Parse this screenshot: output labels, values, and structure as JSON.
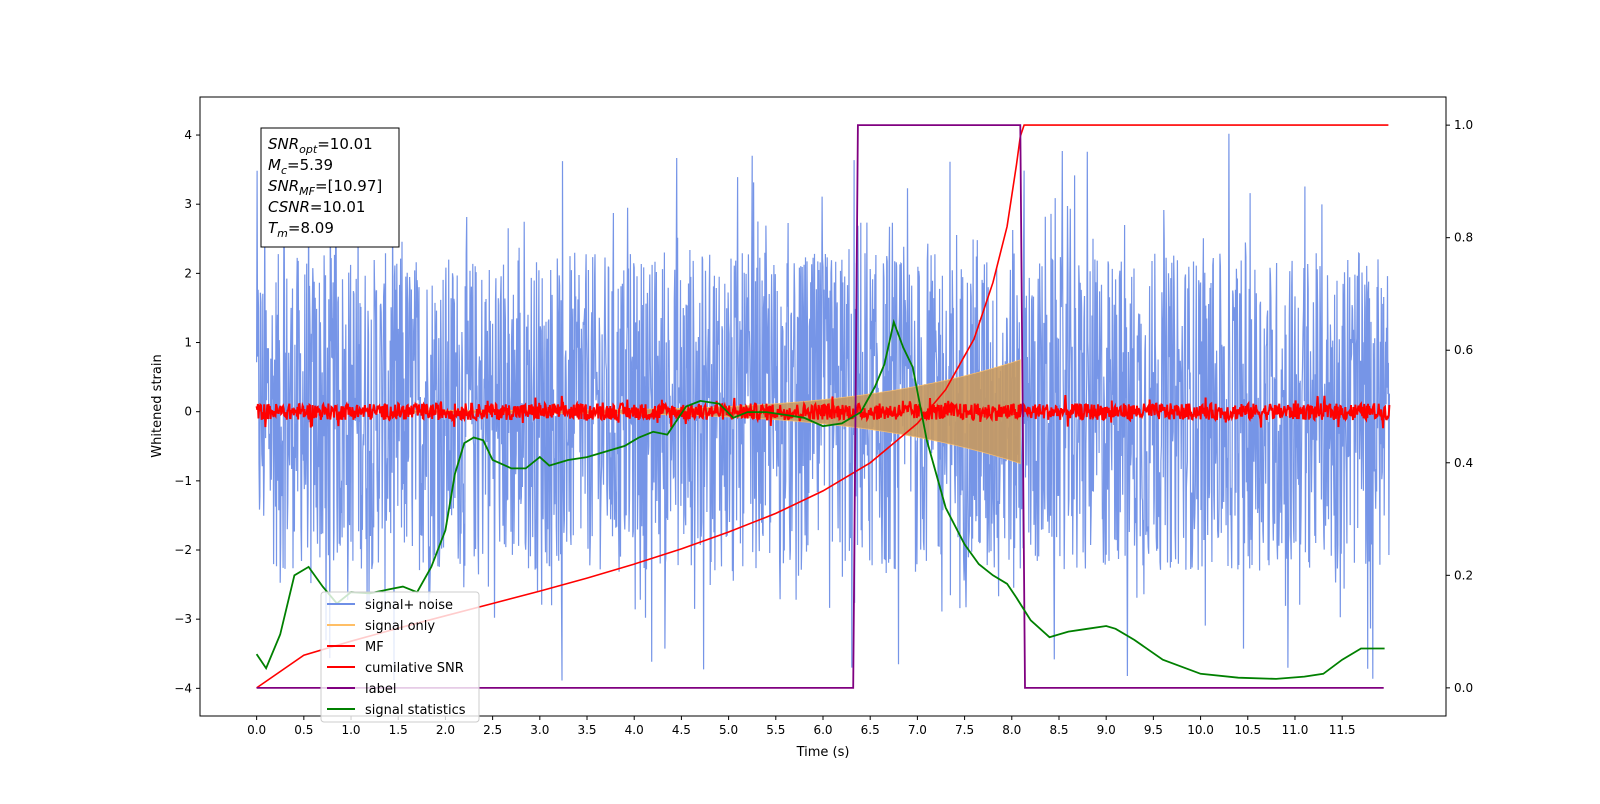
{
  "chart_data": {
    "type": "line",
    "xlabel": "Time (s)",
    "ylabel": "Whitened strain",
    "title": "",
    "xlim": [
      -0.6,
      12.6
    ],
    "ylim_left": [
      -4.4,
      4.55
    ],
    "ylim_right": [
      -0.05,
      1.05
    ],
    "x_ticks": [
      0.0,
      0.5,
      1.0,
      1.5,
      2.0,
      2.5,
      3.0,
      3.5,
      4.0,
      4.5,
      5.0,
      5.5,
      6.0,
      6.5,
      7.0,
      7.5,
      8.0,
      8.5,
      9.0,
      9.5,
      10.0,
      10.5,
      11.0,
      11.5
    ],
    "x_tick_labels": [
      "0.0",
      "0.5",
      "1.0",
      "1.5",
      "2.0",
      "2.5",
      "3.0",
      "3.5",
      "4.0",
      "4.5",
      "5.0",
      "5.5",
      "6.0",
      "6.5",
      "7.0",
      "7.5",
      "8.0",
      "8.5",
      "9.0",
      "9.5",
      "10.0",
      "10.5",
      "11.0",
      "11.5"
    ],
    "y_ticks_left": [
      4,
      3,
      2,
      1,
      0,
      -1,
      -2,
      -3,
      -4
    ],
    "y_tick_labels_left": [
      "4",
      "3",
      "2",
      "1",
      "0",
      "−1",
      "−2",
      "−3",
      "−4"
    ],
    "y_ticks_right": [
      1.0,
      0.8,
      0.6,
      0.4,
      0.2,
      0.0
    ],
    "y_tick_labels_right": [
      "1.0",
      "0.8",
      "0.6",
      "0.4",
      "0.2",
      "0.0"
    ],
    "grid": false,
    "legend_position": "lower-left",
    "annotation": {
      "lines": [
        {
          "sym": "SNR",
          "sub": "opt",
          "val": "=10.01"
        },
        {
          "sym": "M",
          "sub": "c",
          "val": "=5.39"
        },
        {
          "sym": "SNR",
          "sub": "MF",
          "val": "=[10.97]"
        },
        {
          "sym": "CSNR",
          "sub": "",
          "val": "=10.01"
        },
        {
          "sym": "T",
          "sub": "m",
          "val": "=8.09"
        }
      ]
    },
    "series": [
      {
        "name": "signal+ noise",
        "color": "#6f8fe6",
        "axis": "left",
        "kind": "noise",
        "t_start": 0.0,
        "t_end": 12.0,
        "center": 0.0,
        "typical_amplitude": 2.3,
        "peak_max": 4.15,
        "peak_min": -3.95
      },
      {
        "name": "signal only",
        "color": "#ffbf66",
        "axis": "left",
        "kind": "chirp-envelope",
        "t_start": 1.6,
        "t_end": 8.09,
        "amplitude_start": 0.02,
        "amplitude_end": 0.75
      },
      {
        "name": "MF",
        "color": "#ff0000",
        "axis": "left",
        "kind": "noise",
        "t_start": 0.0,
        "t_end": 12.0,
        "center": 0.0,
        "typical_amplitude": 0.12
      },
      {
        "name": "cumilative SNR",
        "color": "#ff0000",
        "axis": "right",
        "x": [
          0.0,
          0.5,
          1.0,
          1.5,
          2.0,
          2.5,
          3.0,
          3.5,
          4.0,
          4.5,
          5.0,
          5.5,
          6.0,
          6.5,
          7.0,
          7.3,
          7.6,
          7.8,
          7.95,
          8.05,
          8.09,
          8.13,
          11.6,
          11.99
        ],
        "y": [
          0.0,
          0.058,
          0.083,
          0.106,
          0.128,
          0.15,
          0.172,
          0.195,
          0.22,
          0.247,
          0.277,
          0.31,
          0.35,
          0.4,
          0.47,
          0.53,
          0.62,
          0.72,
          0.82,
          0.93,
          0.98,
          1.0,
          1.0,
          1.0
        ]
      },
      {
        "name": "label",
        "color": "#800080",
        "axis": "right",
        "x": [
          0.0,
          6.32,
          6.37,
          8.09,
          8.14,
          11.94
        ],
        "y": [
          0.0,
          0.0,
          1.0,
          1.0,
          0.0,
          0.0
        ]
      },
      {
        "name": "signal statistics",
        "color": "#008000",
        "axis": "right",
        "x": [
          0.0,
          0.1,
          0.25,
          0.4,
          0.55,
          0.7,
          0.85,
          1.0,
          1.2,
          1.4,
          1.55,
          1.7,
          1.85,
          2.0,
          2.1,
          2.2,
          2.3,
          2.4,
          2.5,
          2.7,
          2.85,
          3.0,
          3.1,
          3.3,
          3.5,
          3.7,
          3.9,
          4.05,
          4.2,
          4.35,
          4.55,
          4.7,
          4.9,
          5.05,
          5.2,
          5.4,
          5.6,
          5.8,
          6.0,
          6.2,
          6.4,
          6.55,
          6.65,
          6.75,
          6.85,
          6.95,
          7.1,
          7.3,
          7.5,
          7.65,
          7.8,
          7.95,
          8.05,
          8.2,
          8.4,
          8.6,
          8.8,
          9.0,
          9.1,
          9.3,
          9.6,
          10.0,
          10.4,
          10.8,
          11.1,
          11.3,
          11.5,
          11.7,
          11.85,
          11.95
        ],
        "y": [
          0.06,
          0.035,
          0.095,
          0.2,
          0.215,
          0.18,
          0.15,
          0.17,
          0.168,
          0.175,
          0.18,
          0.17,
          0.215,
          0.28,
          0.38,
          0.435,
          0.445,
          0.44,
          0.405,
          0.39,
          0.39,
          0.41,
          0.395,
          0.405,
          0.41,
          0.42,
          0.43,
          0.445,
          0.455,
          0.45,
          0.5,
          0.51,
          0.505,
          0.48,
          0.49,
          0.49,
          0.485,
          0.48,
          0.465,
          0.47,
          0.49,
          0.535,
          0.575,
          0.65,
          0.605,
          0.57,
          0.44,
          0.32,
          0.255,
          0.22,
          0.2,
          0.185,
          0.16,
          0.12,
          0.09,
          0.1,
          0.105,
          0.11,
          0.105,
          0.085,
          0.05,
          0.025,
          0.018,
          0.016,
          0.02,
          0.025,
          0.05,
          0.07,
          0.07,
          0.07
        ]
      }
    ]
  }
}
